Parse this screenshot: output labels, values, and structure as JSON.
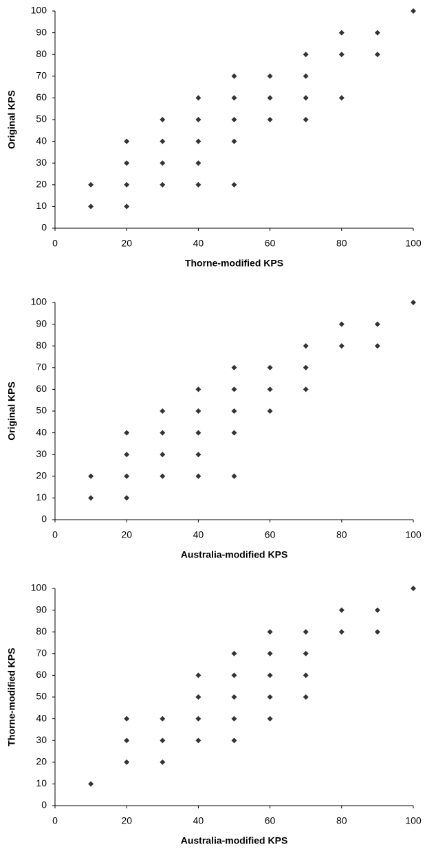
{
  "chart_data": [
    {
      "type": "scatter",
      "x_label": "Thorne-modified KPS",
      "y_label": "Original KPS",
      "color": "#333333",
      "x": [
        10,
        10,
        20,
        20,
        20,
        20,
        30,
        30,
        30,
        30,
        40,
        40,
        40,
        40,
        40,
        50,
        50,
        50,
        50,
        50,
        60,
        60,
        60,
        70,
        70,
        70,
        70,
        80,
        80,
        80,
        90,
        90,
        100
      ],
      "values": [
        10,
        20,
        10,
        20,
        30,
        40,
        20,
        30,
        40,
        50,
        20,
        30,
        40,
        50,
        60,
        20,
        40,
        50,
        60,
        70,
        50,
        60,
        70,
        50,
        60,
        70,
        80,
        60,
        80,
        90,
        80,
        90,
        100
      ],
      "xlim": [
        0,
        100
      ],
      "ylim": [
        0,
        100
      ],
      "xticks": [
        0,
        20,
        40,
        60,
        80,
        100
      ],
      "yticks": [
        0,
        10,
        20,
        30,
        40,
        50,
        60,
        70,
        80,
        90,
        100
      ]
    },
    {
      "type": "scatter",
      "x_label": "Australia-modified KPS",
      "y_label": "Original KPS",
      "color": "#333333",
      "x": [
        10,
        10,
        20,
        20,
        20,
        20,
        30,
        30,
        30,
        30,
        40,
        40,
        40,
        40,
        40,
        50,
        50,
        50,
        50,
        50,
        60,
        60,
        60,
        70,
        70,
        70,
        80,
        80,
        90,
        90,
        100
      ],
      "values": [
        10,
        20,
        10,
        20,
        30,
        40,
        20,
        30,
        40,
        50,
        20,
        30,
        40,
        50,
        60,
        20,
        40,
        50,
        60,
        70,
        50,
        60,
        70,
        60,
        70,
        80,
        80,
        90,
        80,
        90,
        100
      ],
      "xlim": [
        0,
        100
      ],
      "ylim": [
        0,
        100
      ],
      "xticks": [
        0,
        20,
        40,
        60,
        80,
        100
      ],
      "yticks": [
        0,
        10,
        20,
        30,
        40,
        50,
        60,
        70,
        80,
        90,
        100
      ]
    },
    {
      "type": "scatter",
      "x_label": "Australia-modified KPS",
      "y_label": "Thorne-modified KPS",
      "color": "#333333",
      "x": [
        10,
        20,
        20,
        20,
        30,
        30,
        30,
        40,
        40,
        40,
        40,
        50,
        50,
        50,
        50,
        50,
        60,
        60,
        60,
        60,
        60,
        70,
        70,
        70,
        70,
        80,
        80,
        90,
        90,
        100
      ],
      "values": [
        10,
        20,
        30,
        40,
        20,
        30,
        40,
        30,
        40,
        50,
        60,
        30,
        40,
        50,
        60,
        70,
        40,
        50,
        60,
        70,
        80,
        50,
        60,
        70,
        80,
        80,
        90,
        80,
        90,
        100
      ],
      "xlim": [
        0,
        100
      ],
      "ylim": [
        0,
        100
      ],
      "xticks": [
        0,
        20,
        40,
        60,
        80,
        100
      ],
      "yticks": [
        0,
        10,
        20,
        30,
        40,
        50,
        60,
        70,
        80,
        90,
        100
      ]
    }
  ]
}
